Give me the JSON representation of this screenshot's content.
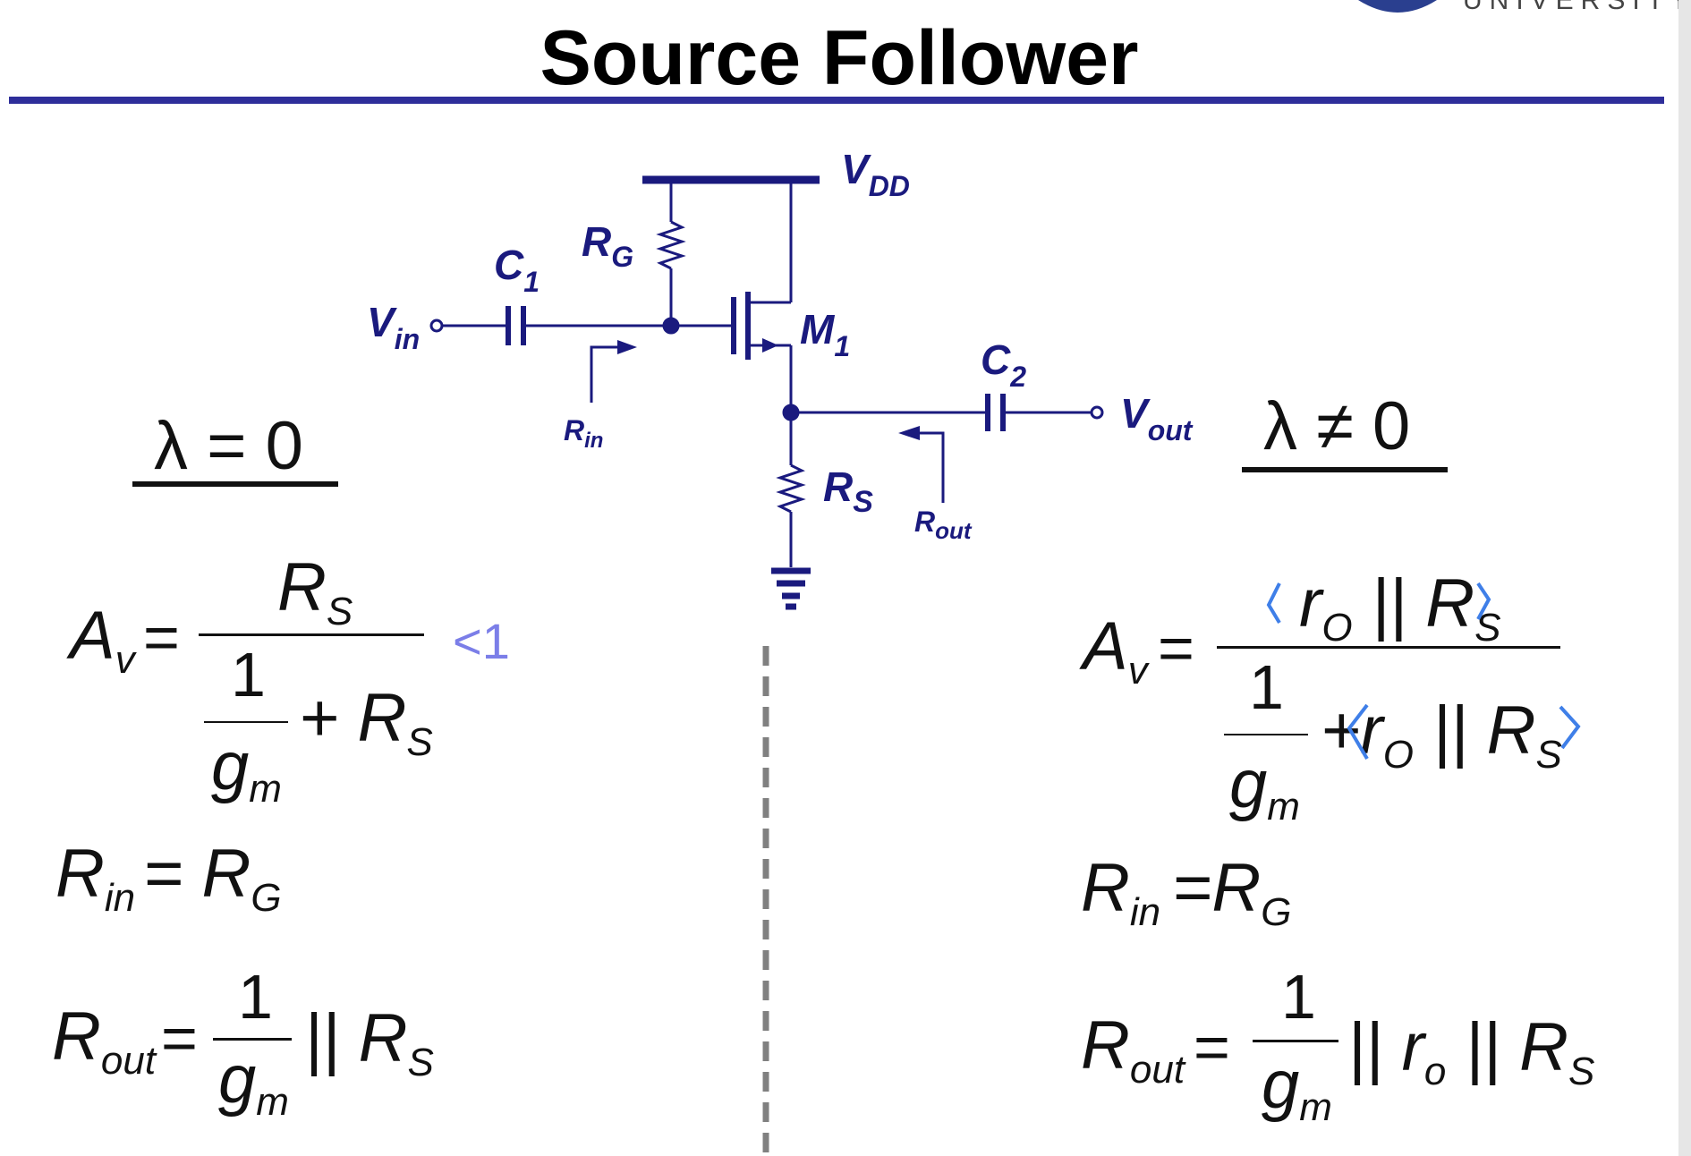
{
  "slide": {
    "title": "Source Follower",
    "logo_text": "UNIVERSITY",
    "colors": {
      "navy": "#1a1a7e",
      "rule": "#2e2e9a",
      "ink": "#111111",
      "pen": "#3f7fe8",
      "dash": "#808080"
    }
  },
  "circuit": {
    "vdd_label": "V",
    "vdd_sub": "DD",
    "rg_label": "R",
    "rg_sub": "G",
    "c1_label": "C",
    "c1_sub": "1",
    "vin_label": "V",
    "vin_sub": "in",
    "m1_label": "M",
    "m1_sub": "1",
    "c2_label": "C",
    "c2_sub": "2",
    "vout_label": "V",
    "vout_sub": "out",
    "rin_label": "R",
    "rin_sub": "in",
    "rs_label": "R",
    "rs_sub": "S",
    "rout_label": "R",
    "rout_sub": "out"
  },
  "left": {
    "condition": "λ = 0",
    "av_lhs": "A",
    "av_lhs_sub": "v",
    "av_num": "R",
    "av_num_sub": "S",
    "av_den_one": "1",
    "av_den_gm": "g",
    "av_den_gm_sub": "m",
    "av_den_plus": "+ R",
    "av_den_plus_sub": "S",
    "note": "<1",
    "rin_lhs": "R",
    "rin_lhs_sub": "in",
    "rin_rhs": "= R",
    "rin_rhs_sub": "G",
    "rout_lhs": "R",
    "rout_lhs_sub": "out",
    "rout_one": "1",
    "rout_gm": "g",
    "rout_gm_sub": "m",
    "rout_tail": "|| R",
    "rout_tail_sub": "S"
  },
  "right": {
    "condition": "λ ≠ 0",
    "av_lhs": "A",
    "av_lhs_sub": "v",
    "av_num": "r",
    "av_num_sub": "O",
    "av_num_tail": " || R",
    "av_num_tail_sub": "S",
    "av_den_one": "1",
    "av_den_gm": "g",
    "av_den_gm_sub": "m",
    "av_den_plus": "+r",
    "av_den_plus_sub": "O",
    "av_den_tail": " || R",
    "av_den_tail_sub": "S",
    "rin_lhs": "R",
    "rin_lhs_sub": "in",
    "rin_rhs": "=R",
    "rin_rhs_sub": "G",
    "rout_lhs": "R",
    "rout_lhs_sub": "out",
    "rout_one": "1",
    "rout_gm": "g",
    "rout_gm_sub": "m",
    "rout_tail": "|| r",
    "rout_tail_sub": "o",
    "rout_tail2": " || R",
    "rout_tail2_sub": "S"
  }
}
